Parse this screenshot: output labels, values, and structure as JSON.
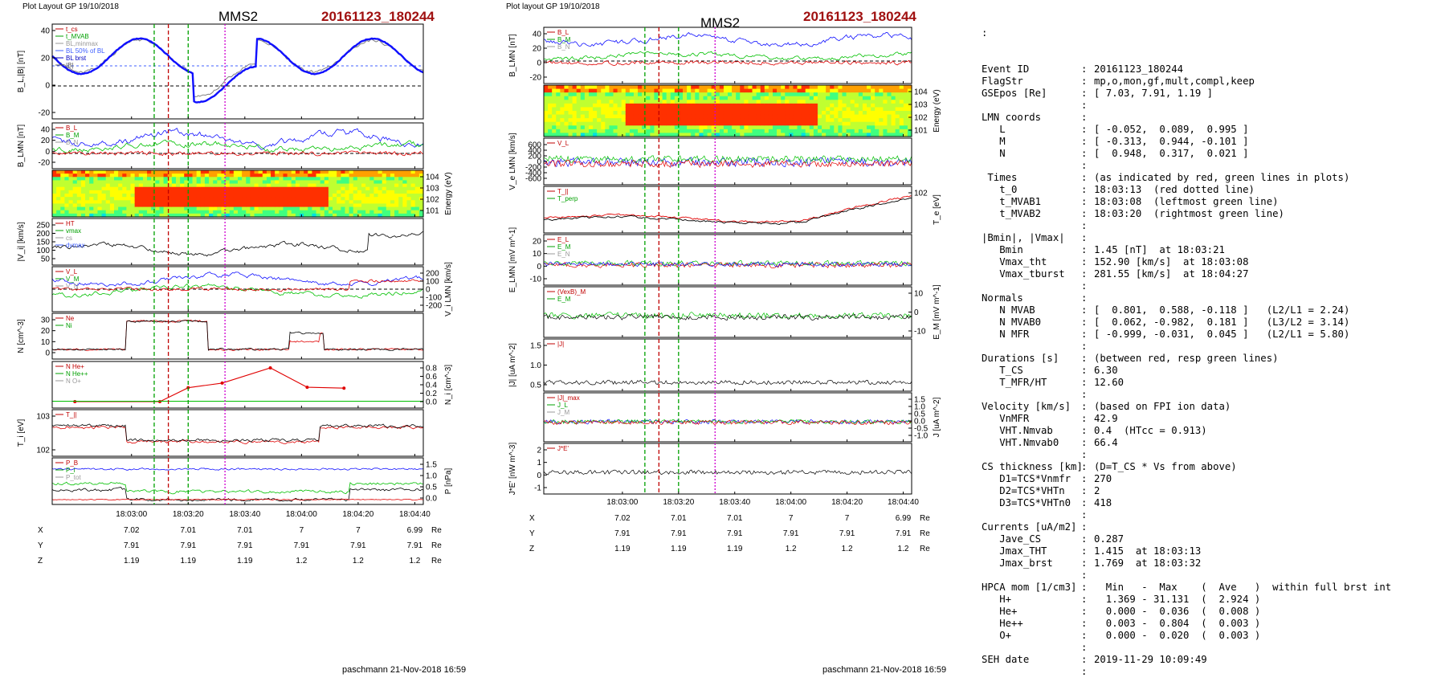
{
  "left_figure": {
    "header": "Plot Layout GP 19/10/2018",
    "title": "MMS2",
    "event": "20161123_180244",
    "footer": "paschmann 21-Nov-2018 16:59",
    "time_ticks": [
      "18:03:00",
      "18:03:20",
      "18:03:40",
      "18:04:00",
      "18:04:20",
      "18:04:40"
    ],
    "positions": {
      "rows": [
        {
          "label": "X",
          "values": [
            "7.02",
            "7.01",
            "7.01",
            "7",
            "7",
            "6.99"
          ],
          "unit": "Re"
        },
        {
          "label": "Y",
          "values": [
            "7.91",
            "7.91",
            "7.91",
            "7.91",
            "7.91",
            "7.91"
          ],
          "unit": "Re"
        },
        {
          "label": "Z",
          "values": [
            "1.19",
            "1.19",
            "1.19",
            "1.2",
            "1.2",
            "1.2"
          ],
          "unit": "Re"
        }
      ]
    },
    "panels": [
      {
        "id": "bl",
        "ylabel": "B_L,|B| [nT]",
        "side": "left",
        "ticks": [
          "40",
          "20",
          "0",
          "-20"
        ],
        "legend": [
          "t_cs",
          "t_MVAB",
          "BL,minmax",
          "BL 50% of BL",
          "BL brst",
          "|B|"
        ]
      },
      {
        "id": "blmn",
        "ylabel": "B_LMN [nT]",
        "side": "left",
        "ticks": [
          "40",
          "20",
          "0",
          "-20"
        ],
        "legend": [
          "B_L",
          "B_M",
          "B_N"
        ]
      },
      {
        "id": "spec",
        "ylabel": "Energy (eV)",
        "side": "right",
        "ticks": [
          "10^4",
          "10^3",
          "10^2",
          "10^1"
        ],
        "legend": []
      },
      {
        "id": "vi",
        "ylabel": "|V_i| [km/s]",
        "side": "left",
        "ticks": [
          "250",
          "200",
          "150",
          "100",
          "50"
        ],
        "legend": [
          "HT",
          "vmax",
          "cs",
          "dvmax"
        ]
      },
      {
        "id": "vilmn",
        "ylabel": "V_i LMN [km/s]",
        "side": "right",
        "ticks": [
          "200",
          "100",
          "0",
          "-100",
          "-200"
        ],
        "legend": [
          "V_L",
          "V_M",
          "V_N"
        ]
      },
      {
        "id": "n",
        "ylabel": "N [cm^-3]",
        "side": "left",
        "ticks": [
          "30",
          "20",
          "10",
          "0"
        ],
        "legend": [
          "Ne",
          "Ni"
        ]
      },
      {
        "id": "ni",
        "ylabel": "N_i [cm^-3]",
        "side": "right",
        "ticks": [
          "0.8",
          "0.6",
          "0.4",
          "0.2",
          "0.0"
        ],
        "legend": [
          "N He+",
          "N He++",
          "N O+"
        ]
      },
      {
        "id": "ti",
        "ylabel": "T_i [eV]",
        "side": "left",
        "ticks": [
          "10^3",
          "10^2"
        ],
        "legend": [
          "T_||"
        ]
      },
      {
        "id": "p",
        "ylabel": "P [nPa]",
        "side": "right",
        "ticks": [
          "1.5",
          "1.0",
          "0.5",
          "0.0"
        ],
        "legend": [
          "P_B",
          "P_i",
          "P_tot"
        ]
      }
    ]
  },
  "right_figure": {
    "header": "Plot layout GP 19/10/2018",
    "title": "MMS2",
    "event": "20161123_180244",
    "footer": "paschmann 21-Nov-2018 16:59",
    "time_ticks": [
      "18:03:00",
      "18:03:20",
      "18:03:40",
      "18:04:00",
      "18:04:20",
      "18:04:40"
    ],
    "positions": {
      "rows": [
        {
          "label": "X",
          "values": [
            "7.02",
            "7.01",
            "7.01",
            "7",
            "7",
            "6.99"
          ],
          "unit": "Re"
        },
        {
          "label": "Y",
          "values": [
            "7.91",
            "7.91",
            "7.91",
            "7.91",
            "7.91",
            "7.91"
          ],
          "unit": "Re"
        },
        {
          "label": "Z",
          "values": [
            "1.19",
            "1.19",
            "1.19",
            "1.2",
            "1.2",
            "1.2"
          ],
          "unit": "Re"
        }
      ]
    },
    "panels": [
      {
        "id": "blmn",
        "ylabel": "B_LMN [nT]",
        "side": "left",
        "ticks": [
          "40",
          "20",
          "0",
          "-20"
        ],
        "legend": [
          "B_L",
          "B_M",
          "B_N"
        ]
      },
      {
        "id": "espec",
        "ylabel": "Energy (eV)",
        "side": "right",
        "ticks": [
          "10^4",
          "10^3",
          "10^2",
          "10^1"
        ],
        "legend": []
      },
      {
        "id": "ve",
        "ylabel": "V_e LMN [km/s]",
        "side": "left",
        "ticks": [
          "600",
          "400",
          "200",
          "0",
          "-200",
          "-400",
          "-600"
        ],
        "legend": [
          "V_L"
        ]
      },
      {
        "id": "te",
        "ylabel": "T_e [eV]",
        "side": "right",
        "ticks": [
          "10^2"
        ],
        "legend": [
          "T_||",
          "T_perp"
        ]
      },
      {
        "id": "e",
        "ylabel": "E_LMN [mV m^-1]",
        "side": "left",
        "ticks": [
          "20",
          "10",
          "0",
          "-10"
        ],
        "legend": [
          "E_L",
          "E_M",
          "E_N"
        ]
      },
      {
        "id": "em",
        "ylabel": "E_M [mV m^-1]",
        "side": "right",
        "ticks": [
          "10",
          "0",
          "-10"
        ],
        "legend": [
          "(VexB)_M",
          "E_M"
        ]
      },
      {
        "id": "j",
        "ylabel": "|J| [uA m^-2]",
        "side": "left",
        "ticks": [
          "1.5",
          "1.0",
          "0.5"
        ],
        "legend": [
          "|J|"
        ]
      },
      {
        "id": "jlmn",
        "ylabel": "J [uA m^-2]",
        "side": "right",
        "ticks": [
          "1.5",
          "1.0",
          "0.5",
          "0.0",
          "-0.5",
          "-1.0"
        ],
        "legend": [
          "|J|_max",
          "J_L",
          "J_M"
        ]
      },
      {
        "id": "je",
        "ylabel": "J*E' [nW m^-3]",
        "side": "left",
        "ticks": [
          "2",
          "1",
          "0",
          "-1"
        ],
        "legend": [
          "J*E'"
        ]
      }
    ]
  },
  "info": {
    "top_mark": ":",
    "rows": [
      [
        "Event ID",
        "20161123_180244"
      ],
      [
        "FlagStr",
        "mp,o,mon,gf,mult,compl,keep"
      ],
      [
        "GSEpos [Re]",
        "[ 7.03, 7.91, 1.19 ]"
      ],
      [
        "",
        ""
      ],
      [
        "LMN coords",
        ""
      ],
      [
        "   L",
        "[ -0.052,  0.089,  0.995 ]"
      ],
      [
        "   M",
        "[ -0.313,  0.944, -0.101 ]"
      ],
      [
        "   N",
        "[  0.948,  0.317,  0.021 ]"
      ],
      [
        "",
        ""
      ],
      [
        " Times",
        "(as indicated by red, green lines in plots)"
      ],
      [
        "   t_0",
        "18:03:13  (red dotted line)"
      ],
      [
        "   t_MVAB1",
        "18:03:08  (leftmost green line)"
      ],
      [
        "   t_MVAB2",
        "18:03:20  (rightmost green line)"
      ],
      [
        "",
        ""
      ],
      [
        "|Bmin|, |Vmax|",
        ""
      ],
      [
        "   Bmin",
        "1.45 [nT]  at 18:03:21"
      ],
      [
        "   Vmax_tht",
        "152.90 [km/s]  at 18:03:08"
      ],
      [
        "   Vmax_tburst",
        "281.55 [km/s]  at 18:04:27"
      ],
      [
        "",
        ""
      ],
      [
        "Normals",
        ""
      ],
      [
        "   N MVAB",
        "[  0.801,  0.588, -0.118 ]   (L2/L1 = 2.24)"
      ],
      [
        "   N MVAB0",
        "[  0.062, -0.982,  0.181 ]   (L3/L2 = 3.14)"
      ],
      [
        "   N MFR",
        "[ -0.999, -0.031,  0.045 ]   (L2/L1 = 5.80)"
      ],
      [
        "",
        ""
      ],
      [
        "Durations [s]",
        "(between red, resp green lines)"
      ],
      [
        "   T_CS",
        "6.30"
      ],
      [
        "   T_MFR/HT",
        "12.60"
      ],
      [
        "",
        ""
      ],
      [
        "Velocity [km/s]",
        "(based on FPI ion data)"
      ],
      [
        "   VnMFR",
        "42.9"
      ],
      [
        "   VHT.Nmvab",
        "0.4  (HTcc = 0.913)"
      ],
      [
        "   VHT.Nmvab0",
        "66.4"
      ],
      [
        "",
        ""
      ],
      [
        "CS thickness [km]",
        "(D=T_CS * Vs from above)"
      ],
      [
        "   D1=TCS*Vnmfr",
        "270"
      ],
      [
        "   D2=TCS*VHTn",
        "2"
      ],
      [
        "   D3=TCS*VHTn0",
        "418"
      ],
      [
        "",
        ""
      ],
      [
        "Currents [uA/m2]",
        ""
      ],
      [
        "   Jave_CS",
        "0.287"
      ],
      [
        "   Jmax_THT",
        "1.415  at 18:03:13"
      ],
      [
        "   Jmax_brst",
        "1.769  at 18:03:32"
      ],
      [
        "",
        ""
      ],
      [
        "HPCA mom [1/cm3]",
        "  Min   -  Max    (  Ave   )  within full brst int"
      ],
      [
        "   H+",
        "  1.369 - 31.131  (  2.924 )"
      ],
      [
        "   He+",
        "  0.000 -  0.036  (  0.008 )"
      ],
      [
        "   He++",
        "  0.003 -  0.804  (  0.003 )"
      ],
      [
        "   O+",
        "  0.000 -  0.020  (  0.003 )"
      ],
      [
        "",
        ""
      ],
      [
        "SEH date",
        "2019-11-29 10:09:49"
      ],
      [
        "",
        ""
      ]
    ]
  },
  "chart_data": [
    {
      "type": "line",
      "title": "MMS2",
      "subtitle": "20161123_180244",
      "xlabel": "",
      "x_ticks": [
        "18:03:00",
        "18:03:20",
        "18:03:40",
        "18:04:00",
        "18:04:20",
        "18:04:40"
      ],
      "panels": [
        "B_L,|B| [nT]",
        "B_LMN [nT]",
        "Energy (eV)",
        "|V_i| [km/s]",
        "V_i LMN [km/s]",
        "N [cm^-3]",
        "N_i [cm^-3]",
        "T_i [eV]",
        "P [nPa]"
      ],
      "series": [
        {
          "panel": "N_i [cm^-3]",
          "name": "N He++",
          "x_sec": [
            -20,
            10,
            20,
            32,
            49,
            62,
            75
          ],
          "values": [
            0.0,
            0.0,
            0.33,
            0.44,
            0.8,
            0.34,
            0.32
          ]
        }
      ],
      "event_lines_sec": {
        "t_MVAB1": 8,
        "t_0": 13,
        "t_MVAB2": 20
      }
    },
    {
      "type": "line",
      "title": "MMS2",
      "subtitle": "20161123_180244",
      "x_ticks": [
        "18:03:00",
        "18:03:20",
        "18:03:40",
        "18:04:00",
        "18:04:20",
        "18:04:40"
      ],
      "panels": [
        "B_LMN [nT]",
        "Energy (eV)",
        "V_e LMN [km/s]",
        "T_e [eV]",
        "E_LMN [mV m^-1]",
        "E_M [mV m^-1]",
        "|J| [uA m^-2]",
        "J [uA m^-2]",
        "J*E' [nW m^-3]"
      ]
    }
  ]
}
